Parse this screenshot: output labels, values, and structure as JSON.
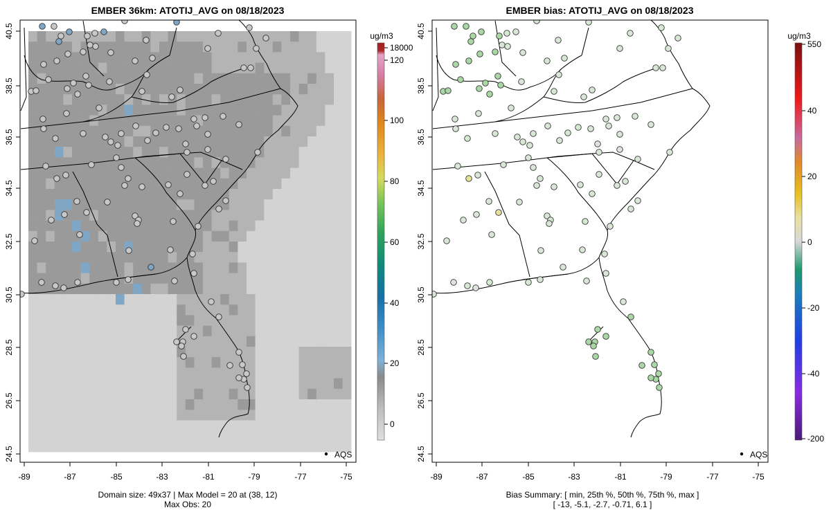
{
  "left_panel": {
    "title": "EMBER 36km: ATOTIJ_AVG on 08/18/2023",
    "x_ticks": [
      "-89",
      "-87",
      "-85",
      "-83",
      "-81",
      "-79",
      "-77",
      "-75"
    ],
    "y_ticks": [
      "40.5",
      "38.5",
      "36.5",
      "34.5",
      "32.5",
      "30.5",
      "28.5",
      "26.5",
      "24.5"
    ],
    "legend_point": "AQS",
    "footer_line1": "Domain size: 49x37 | Max Model = 20 at (38, 12)",
    "footer_line2": "Max Obs: 20",
    "colorbar": {
      "unit": "ug/m3",
      "ticks": [
        "18000",
        "120",
        "100",
        "80",
        "60",
        "40",
        "20",
        "0"
      ]
    }
  },
  "right_panel": {
    "title": "EMBER bias: ATOTIJ_AVG on 08/18/2023",
    "x_ticks": [
      "-89",
      "-87",
      "-85",
      "-83",
      "-81",
      "-79",
      "-77",
      "-75"
    ],
    "y_ticks": [
      "40.5",
      "38.5",
      "36.5",
      "34.5",
      "32.5",
      "30.5",
      "28.5",
      "26.5",
      "24.5"
    ],
    "legend_point": "AQS",
    "footer_line1": "Bias Summary: [ min, 25th %, 50th %, 75th %, max ]",
    "footer_line2": "[ -13,   -5.1,   -2.7,   -0.71,   6.1 ]",
    "colorbar": {
      "unit": "ug/m3",
      "ticks": [
        "550",
        "40",
        "20",
        "0",
        "-20",
        "-40",
        "-200"
      ]
    }
  },
  "colors": {
    "obs_gray": "#c8c8c8",
    "model_dark": "#9a9a9a",
    "model_mid": "#b4b4b4",
    "model_light": "#d3d3d3",
    "blue_cell": "#7fa6c4",
    "bias_green": "#a9d7a5",
    "bias_yellow": "#e6e29a"
  }
}
